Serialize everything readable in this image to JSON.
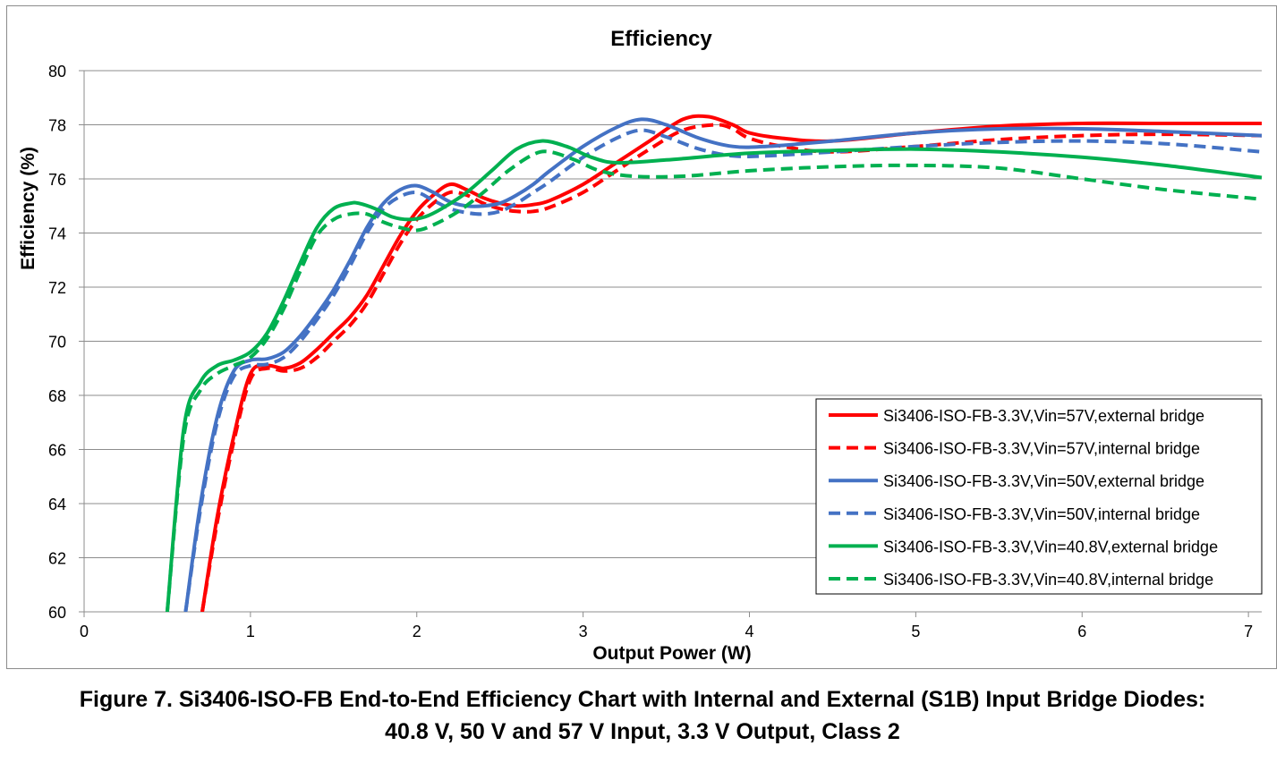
{
  "chart_data": {
    "type": "line",
    "title": "Efficiency",
    "xlabel": "Output Power (W)",
    "ylabel": "Efficiency (%)",
    "xlim": [
      0,
      7.08
    ],
    "ylim": [
      60,
      80
    ],
    "x_ticks": [
      0,
      1,
      2,
      3,
      4,
      5,
      6,
      7
    ],
    "y_ticks": [
      60,
      62,
      64,
      66,
      68,
      70,
      72,
      74,
      76,
      78,
      80
    ],
    "grid": "horizontal",
    "legend_position": "bottom-right",
    "series": [
      {
        "name": "Si3406-ISO-FB-3.3V,Vin=57V,external bridge",
        "color": "#ff0000",
        "dash": "solid",
        "x": [
          0.71,
          0.8,
          0.9,
          1.0,
          1.1,
          1.2,
          1.3,
          1.4,
          1.5,
          1.6,
          1.7,
          1.8,
          1.9,
          2.0,
          2.1,
          2.2,
          2.3,
          2.4,
          2.5,
          2.6,
          2.7,
          2.8,
          3.0,
          3.2,
          3.4,
          3.6,
          3.75,
          3.9,
          4.0,
          4.2,
          4.5,
          5.0,
          5.5,
          6.0,
          6.5,
          7.08
        ],
        "y": [
          60.0,
          63.5,
          66.5,
          68.8,
          69.1,
          69.0,
          69.2,
          69.7,
          70.3,
          70.9,
          71.7,
          72.8,
          73.9,
          74.8,
          75.4,
          75.8,
          75.6,
          75.3,
          75.1,
          75.0,
          75.05,
          75.2,
          75.8,
          76.6,
          77.4,
          78.2,
          78.3,
          78.0,
          77.7,
          77.5,
          77.4,
          77.7,
          77.95,
          78.05,
          78.05,
          78.05
        ]
      },
      {
        "name": "Si3406-ISO-FB-3.3V,Vin=57V,internal bridge",
        "color": "#ff0000",
        "dash": "dashed",
        "x": [
          0.71,
          0.8,
          0.9,
          1.0,
          1.1,
          1.2,
          1.3,
          1.4,
          1.5,
          1.6,
          1.7,
          1.8,
          1.9,
          2.0,
          2.1,
          2.2,
          2.3,
          2.4,
          2.5,
          2.6,
          2.7,
          2.8,
          3.0,
          3.2,
          3.4,
          3.6,
          3.8,
          3.9,
          4.0,
          4.2,
          4.5,
          5.0,
          5.5,
          6.0,
          6.5,
          7.08
        ],
        "y": [
          60.0,
          63.3,
          66.3,
          68.6,
          69.0,
          68.9,
          69.0,
          69.4,
          70.0,
          70.6,
          71.4,
          72.5,
          73.6,
          74.5,
          75.1,
          75.5,
          75.4,
          75.1,
          74.9,
          74.8,
          74.8,
          74.95,
          75.5,
          76.3,
          77.1,
          77.8,
          78.0,
          77.85,
          77.5,
          77.2,
          77.0,
          77.2,
          77.45,
          77.6,
          77.65,
          77.6
        ]
      },
      {
        "name": "Si3406-ISO-FB-3.3V,Vin=50V,external bridge",
        "color": "#4472c4",
        "dash": "solid",
        "x": [
          0.61,
          0.7,
          0.8,
          0.9,
          1.0,
          1.1,
          1.2,
          1.3,
          1.4,
          1.5,
          1.6,
          1.7,
          1.8,
          1.9,
          2.0,
          2.1,
          2.2,
          2.3,
          2.4,
          2.5,
          2.6,
          2.7,
          2.8,
          3.0,
          3.2,
          3.35,
          3.5,
          3.7,
          3.9,
          4.1,
          4.5,
          5.0,
          5.5,
          6.0,
          6.5,
          7.08
        ],
        "y": [
          60.0,
          64.0,
          67.2,
          68.9,
          69.3,
          69.35,
          69.6,
          70.2,
          71.0,
          71.9,
          73.0,
          74.2,
          75.1,
          75.6,
          75.75,
          75.5,
          75.15,
          75.0,
          75.0,
          75.1,
          75.4,
          75.8,
          76.3,
          77.2,
          77.9,
          78.2,
          78.0,
          77.5,
          77.2,
          77.2,
          77.4,
          77.7,
          77.85,
          77.85,
          77.75,
          77.6
        ]
      },
      {
        "name": "Si3406-ISO-FB-3.3V,Vin=50V,internal bridge",
        "color": "#4472c4",
        "dash": "dashed",
        "x": [
          0.61,
          0.7,
          0.8,
          0.9,
          1.0,
          1.1,
          1.2,
          1.3,
          1.4,
          1.5,
          1.6,
          1.7,
          1.8,
          1.9,
          2.0,
          2.1,
          2.2,
          2.3,
          2.4,
          2.5,
          2.6,
          2.7,
          2.8,
          3.0,
          3.2,
          3.35,
          3.5,
          3.7,
          3.9,
          4.1,
          4.5,
          5.0,
          5.5,
          6.0,
          6.5,
          7.08
        ],
        "y": [
          60.0,
          63.8,
          67.0,
          68.7,
          69.1,
          69.15,
          69.4,
          70.0,
          70.8,
          71.7,
          72.8,
          74.0,
          74.9,
          75.35,
          75.5,
          75.2,
          74.9,
          74.75,
          74.7,
          74.8,
          75.1,
          75.5,
          75.9,
          76.8,
          77.5,
          77.8,
          77.55,
          77.1,
          76.85,
          76.85,
          77.0,
          77.2,
          77.35,
          77.4,
          77.3,
          77.0
        ]
      },
      {
        "name": "Si3406-ISO-FB-3.3V,Vin=40.8V,external bridge",
        "color": "#00b050",
        "dash": "solid",
        "x": [
          0.5,
          0.6,
          0.7,
          0.8,
          0.9,
          1.0,
          1.1,
          1.2,
          1.3,
          1.4,
          1.5,
          1.6,
          1.65,
          1.75,
          1.85,
          1.95,
          2.05,
          2.15,
          2.3,
          2.45,
          2.6,
          2.75,
          2.9,
          3.05,
          3.2,
          3.5,
          4.0,
          4.5,
          5.0,
          5.5,
          6.0,
          6.5,
          7.08
        ],
        "y": [
          60.0,
          66.8,
          68.5,
          69.1,
          69.3,
          69.6,
          70.3,
          71.5,
          72.9,
          74.2,
          74.9,
          75.1,
          75.1,
          74.9,
          74.6,
          74.5,
          74.6,
          74.9,
          75.5,
          76.3,
          77.1,
          77.4,
          77.2,
          76.8,
          76.6,
          76.7,
          76.95,
          77.05,
          77.1,
          77.0,
          76.8,
          76.5,
          76.05
        ]
      },
      {
        "name": "Si3406-ISO-FB-3.3V,Vin=40.8V,internal bridge",
        "color": "#00b050",
        "dash": "dashed",
        "x": [
          0.5,
          0.6,
          0.7,
          0.8,
          0.9,
          1.0,
          1.1,
          1.2,
          1.3,
          1.4,
          1.5,
          1.6,
          1.7,
          1.8,
          1.9,
          2.0,
          2.1,
          2.25,
          2.4,
          2.55,
          2.7,
          2.8,
          2.95,
          3.1,
          3.3,
          3.6,
          4.0,
          4.5,
          5.0,
          5.5,
          6.0,
          6.5,
          7.08
        ],
        "y": [
          60.0,
          66.5,
          68.2,
          68.8,
          69.1,
          69.4,
          70.1,
          71.2,
          72.6,
          73.9,
          74.5,
          74.7,
          74.7,
          74.4,
          74.2,
          74.1,
          74.3,
          74.8,
          75.5,
          76.3,
          76.9,
          77.0,
          76.7,
          76.3,
          76.1,
          76.1,
          76.3,
          76.45,
          76.5,
          76.4,
          76.0,
          75.6,
          75.25
        ]
      }
    ]
  },
  "caption": {
    "line1": "Figure 7. Si3406-ISO-FB End-to-End Efficiency Chart with Internal and External (S1B) Input Bridge Diodes:",
    "line2": "40.8 V, 50 V and 57 V Input, 3.3 V Output, Class 2"
  }
}
